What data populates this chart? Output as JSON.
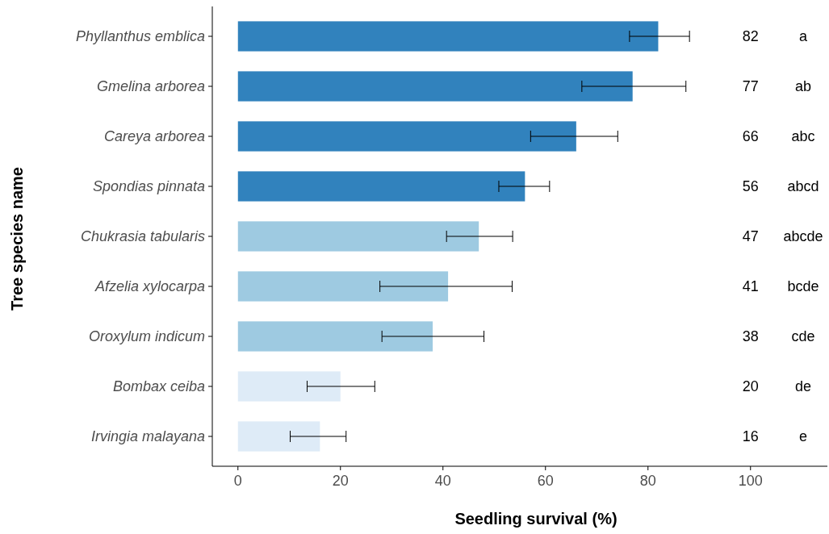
{
  "chart_data": {
    "type": "bar",
    "orientation": "horizontal",
    "xlabel": "Seedling survival (%)",
    "ylabel": "Tree species name",
    "categories": [
      "Phyllanthus emblica",
      "Gmelina arborea",
      "Careya arborea",
      "Spondias pinnata",
      "Chukrasia tabularis",
      "Afzelia xylocarpa",
      "Oroxylum indicum",
      "Bombax ceiba",
      "Irvingia malayana"
    ],
    "values": [
      82,
      77,
      66,
      56,
      47,
      41,
      38,
      20,
      16
    ],
    "colors": [
      "#3182bd",
      "#3182bd",
      "#3182bd",
      "#3182bd",
      "#9ecae1",
      "#9ecae1",
      "#9ecae1",
      "#deebf7",
      "#deebf7"
    ],
    "errors": [
      [
        76.4,
        88.1
      ],
      [
        67.1,
        87.4
      ],
      [
        57.1,
        74.1
      ],
      [
        50.9,
        60.8
      ],
      [
        40.7,
        53.6
      ],
      [
        27.7,
        53.5
      ],
      [
        28.1,
        48.0
      ],
      [
        13.5,
        26.7
      ],
      [
        10.2,
        21.1
      ]
    ],
    "value_labels": [
      "82",
      "77",
      "66",
      "56",
      "47",
      "41",
      "38",
      "20",
      "16"
    ],
    "annotations": [
      "a",
      "ab",
      "abc",
      "abcd",
      "abcde",
      "bcde",
      "cde",
      "de",
      "e"
    ],
    "xlim": [
      -5,
      115
    ],
    "xticks": [
      0,
      20,
      40,
      60,
      80,
      100
    ]
  }
}
